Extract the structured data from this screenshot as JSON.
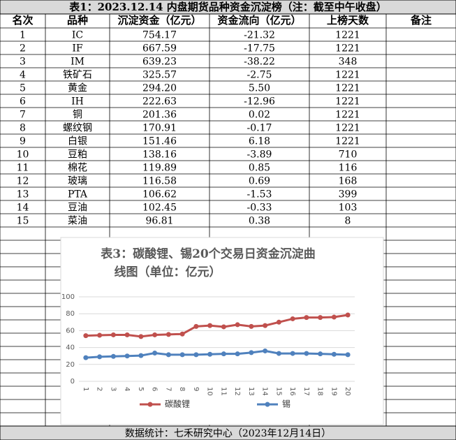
{
  "table": {
    "title": "表1：2023.12.14 内盘期货品种资金沉淀榜（注：截至中午收盘）",
    "header": [
      "名次",
      "品种",
      "沉淀资金（亿元）",
      "资金流向（亿元）",
      "上榜天数",
      "备注"
    ],
    "rows": [
      [
        "1",
        "IC",
        "754.17",
        "-21.32",
        "1221"
      ],
      [
        "2",
        "IF",
        "667.59",
        "-17.75",
        "1221"
      ],
      [
        "3",
        "IM",
        "639.23",
        "-38.22",
        "348"
      ],
      [
        "4",
        "铁矿石",
        "325.57",
        "-2.75",
        "1221"
      ],
      [
        "5",
        "黄金",
        "294.20",
        "5.50",
        "1221"
      ],
      [
        "6",
        "IH",
        "222.63",
        "-12.96",
        "1221"
      ],
      [
        "7",
        "铜",
        "201.36",
        "0.02",
        "1221"
      ],
      [
        "8",
        "螺纹钢",
        "170.91",
        "-0.17",
        "1221"
      ],
      [
        "9",
        "白银",
        "151.46",
        "6.18",
        "1221"
      ],
      [
        "10",
        "豆粕",
        "138.16",
        "-3.89",
        "710"
      ],
      [
        "11",
        "棉花",
        "119.89",
        "0.85",
        "116"
      ],
      [
        "12",
        "玻璃",
        "116.58",
        "0.69",
        "168"
      ],
      [
        "13",
        "PTA",
        "106.62",
        "-1.53",
        "399"
      ],
      [
        "14",
        "豆油",
        "102.45",
        "-0.33",
        "103"
      ],
      [
        "15",
        "菜油",
        "96.81",
        "0.38",
        "8"
      ]
    ],
    "footer": "数据统计：七禾研究中心（2023年12月14日）"
  },
  "chart_data": {
    "type": "line",
    "title": "表3：碳酸锂、锡20个交易日资金沉淀曲线图（单位：亿元）",
    "categories": [
      "1",
      "2",
      "3",
      "4",
      "5",
      "6",
      "7",
      "8",
      "9",
      "10",
      "11",
      "12",
      "13",
      "14",
      "15",
      "16",
      "17",
      "18",
      "19",
      "20"
    ],
    "series": [
      {
        "name": "碳酸锂",
        "color": "#c0504d",
        "values": [
          54,
          54.5,
          55,
          55,
          53,
          55,
          55.5,
          56,
          65,
          66,
          64.5,
          67,
          65,
          66,
          70,
          74,
          75.5,
          75.5,
          76,
          78.5
        ]
      },
      {
        "name": "锡",
        "color": "#4f81bd",
        "values": [
          28,
          29,
          29.5,
          30,
          30.5,
          33.5,
          31.5,
          31.5,
          31.5,
          32,
          32.5,
          32.5,
          34,
          36,
          33,
          33,
          33,
          32.5,
          32,
          31.5
        ]
      }
    ],
    "ylim": [
      0,
      100
    ],
    "yticks": [
      0,
      20,
      40,
      60,
      80,
      100
    ],
    "grid": true,
    "legend": "bottom"
  }
}
